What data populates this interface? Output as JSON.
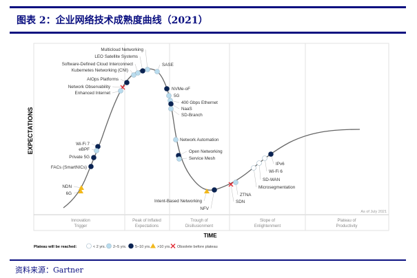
{
  "header": {
    "title": "图表 2：企业网络技术成熟度曲线（2021）"
  },
  "footer": {
    "source": "资料来源：Gartner"
  },
  "diagram": {
    "y_axis_label": "EXPECTATIONS",
    "x_axis_label": "TIME",
    "as_of": "As of July 2021",
    "phases": [
      {
        "line1": "Innovation",
        "line2": "Trigger"
      },
      {
        "line1": "Peak of Inflated",
        "line2": "Expectations"
      },
      {
        "line1": "Trough of",
        "line2": "Disillusionment"
      },
      {
        "line1": "Slope of",
        "line2": "Enlightenment"
      },
      {
        "line1": "Plateau of",
        "line2": "Productivity"
      }
    ],
    "legend": {
      "title": "Plateau will be reached:",
      "items": [
        {
          "key": "lt2",
          "label": "< 2 yrs.",
          "color": "#ffffff"
        },
        {
          "key": "2to5",
          "label": "2–5 yrs.",
          "color": "#b9dcee"
        },
        {
          "key": "5to10",
          "label": "5–10 yrs.",
          "color": "#0a2352"
        },
        {
          "key": "gt10",
          "label": ">10 yrs.",
          "color": "#f2b81c"
        },
        {
          "key": "obsolete",
          "label": "Obsolete before plateau",
          "color": "#e0262f"
        }
      ]
    },
    "technologies": [
      {
        "name": "Multicloud Networking",
        "plateau": "2to5"
      },
      {
        "name": "LEO Satellite Systems",
        "plateau": "5to10"
      },
      {
        "name": "Software-Defined Cloud Interconnect",
        "plateau": "2to5"
      },
      {
        "name": "Kubernetes Networking (CNI)",
        "plateau": "2to5"
      },
      {
        "name": "SASE",
        "plateau": "2to5"
      },
      {
        "name": "AIOps Platforms",
        "plateau": "5to10"
      },
      {
        "name": "Network Observability",
        "plateau": "obsolete"
      },
      {
        "name": "Enhanced Internet",
        "plateau": "2to5"
      },
      {
        "name": "NVMe-oF",
        "plateau": "5to10"
      },
      {
        "name": "5G",
        "plateau": "2to5"
      },
      {
        "name": "400 Gbps Ethernet",
        "plateau": "2to5"
      },
      {
        "name": "NaaS",
        "plateau": "5to10"
      },
      {
        "name": "SD-Branch",
        "plateau": "2to5"
      },
      {
        "name": "Network Automation",
        "plateau": "2to5"
      },
      {
        "name": "Open Networking",
        "plateau": "5to10"
      },
      {
        "name": "Service Mesh",
        "plateau": "2to5"
      },
      {
        "name": "Wi-Fi 7",
        "plateau": "5to10"
      },
      {
        "name": "eBPF",
        "plateau": "2to5"
      },
      {
        "name": "Private 5G",
        "plateau": "5to10"
      },
      {
        "name": "FACs (SmartNICs)",
        "plateau": "5to10"
      },
      {
        "name": "NDN",
        "plateau": "gt10"
      },
      {
        "name": "6G",
        "plateau": "gt10"
      },
      {
        "name": "Intent-Based Networking",
        "plateau": "gt10"
      },
      {
        "name": "NFV",
        "plateau": "5to10"
      },
      {
        "name": "SDN",
        "plateau": "obsolete"
      },
      {
        "name": "ZTNA",
        "plateau": "2to5"
      },
      {
        "name": "Microsegmentation",
        "plateau": "lt2"
      },
      {
        "name": "SD-WAN",
        "plateau": "lt2"
      },
      {
        "name": "Wi-Fi 6",
        "plateau": "lt2"
      },
      {
        "name": "IPv6",
        "plateau": "5to10"
      }
    ]
  }
}
